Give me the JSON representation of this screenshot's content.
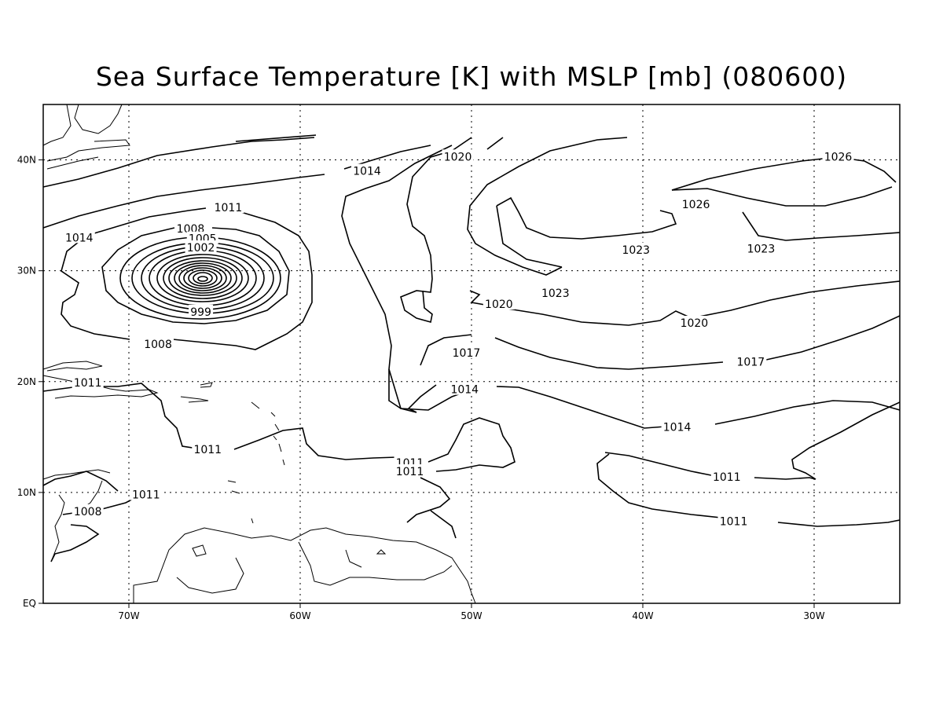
{
  "title": "Sea Surface Temperature [K] with MSLP [mb] (080600)",
  "map": {
    "projection": "lat-lon",
    "lon_range": [
      -75,
      -25
    ],
    "lat_range": [
      0,
      45
    ],
    "lon_ticks": [
      {
        "value": -70,
        "label": "70W"
      },
      {
        "value": -60,
        "label": "60W"
      },
      {
        "value": -50,
        "label": "50W"
      },
      {
        "value": -40,
        "label": "40W"
      },
      {
        "value": -30,
        "label": "30W"
      }
    ],
    "lat_ticks": [
      {
        "value": 0,
        "label": "EQ"
      },
      {
        "value": 10,
        "label": "10N"
      },
      {
        "value": 20,
        "label": "20N"
      },
      {
        "value": 30,
        "label": "30N"
      },
      {
        "value": 40,
        "label": "40N"
      }
    ],
    "grid": true,
    "grid_style": "dotted"
  },
  "contour_labels": [
    {
      "text": "1026",
      "lon": -28.6,
      "lat": 40.3
    },
    {
      "text": "1026",
      "lon": -36.9,
      "lat": 36.0
    },
    {
      "text": "1023",
      "lon": -40.4,
      "lat": 31.9
    },
    {
      "text": "1023",
      "lon": -45.1,
      "lat": 28.0
    },
    {
      "text": "1023",
      "lon": -33.1,
      "lat": 32.0
    },
    {
      "text": "1020",
      "lon": -50.8,
      "lat": 40.3
    },
    {
      "text": "1020",
      "lon": -48.4,
      "lat": 27.0
    },
    {
      "text": "1020",
      "lon": -37.0,
      "lat": 25.3
    },
    {
      "text": "1017",
      "lon": -50.3,
      "lat": 22.6
    },
    {
      "text": "1017",
      "lon": -33.7,
      "lat": 21.8
    },
    {
      "text": "1014",
      "lon": -56.1,
      "lat": 39.0
    },
    {
      "text": "1014",
      "lon": -72.9,
      "lat": 33.0
    },
    {
      "text": "1014",
      "lon": -50.4,
      "lat": 19.3
    },
    {
      "text": "1014",
      "lon": -38.0,
      "lat": 15.9
    },
    {
      "text": "1011",
      "lon": -64.2,
      "lat": 35.7
    },
    {
      "text": "1011",
      "lon": -72.4,
      "lat": 19.9
    },
    {
      "text": "1011",
      "lon": -65.4,
      "lat": 13.9
    },
    {
      "text": "1011",
      "lon": -53.6,
      "lat": 12.7
    },
    {
      "text": "1011",
      "lon": -53.6,
      "lat": 11.9
    },
    {
      "text": "1011",
      "lon": -69.0,
      "lat": 9.8
    },
    {
      "text": "1011",
      "lon": -35.1,
      "lat": 11.4
    },
    {
      "text": "1011",
      "lon": -34.7,
      "lat": 7.4
    },
    {
      "text": "1008",
      "lon": -66.4,
      "lat": 33.8
    },
    {
      "text": "1008",
      "lon": -72.4,
      "lat": 8.3
    },
    {
      "text": "1008",
      "lon": -68.3,
      "lat": 23.4
    },
    {
      "text": "1005",
      "lon": -65.7,
      "lat": 32.9
    },
    {
      "text": "1002",
      "lon": -65.8,
      "lat": 32.1
    },
    {
      "text": "999",
      "lon": -65.8,
      "lat": 26.3
    }
  ]
}
